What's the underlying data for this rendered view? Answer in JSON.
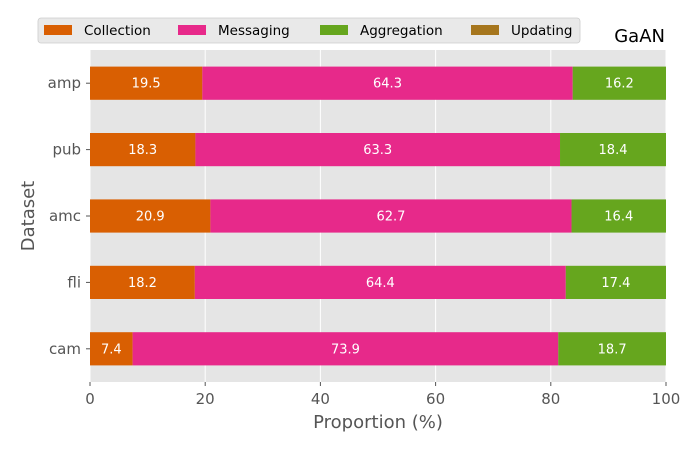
{
  "chart_data": {
    "type": "bar",
    "orientation": "horizontal",
    "stacked": true,
    "title": "GaAN",
    "xlabel": "Proportion (%)",
    "ylabel": "Dataset",
    "xlim": [
      0,
      100
    ],
    "xticks": [
      "0",
      "20",
      "40",
      "60",
      "80",
      "100"
    ],
    "categories": [
      "amp",
      "pub",
      "amc",
      "fli",
      "cam"
    ],
    "grid": true,
    "legend_position": "top",
    "series": [
      {
        "name": "Collection",
        "color": "#d95f02",
        "values": [
          19.5,
          18.3,
          20.9,
          18.2,
          7.4
        ],
        "labels": [
          "19.5",
          "18.3",
          "20.9",
          "18.2",
          "7.4"
        ]
      },
      {
        "name": "Messaging",
        "color": "#e7298a",
        "values": [
          64.3,
          63.3,
          62.7,
          64.4,
          73.9
        ],
        "labels": [
          "64.3",
          "63.3",
          "62.7",
          "64.4",
          "73.9"
        ]
      },
      {
        "name": "Aggregation",
        "color": "#66a61e",
        "values": [
          16.2,
          18.4,
          16.4,
          17.4,
          18.7
        ],
        "labels": [
          "16.2",
          "18.4",
          "16.4",
          "17.4",
          "18.7"
        ]
      },
      {
        "name": "Updating",
        "color": "#a6761d",
        "values": [
          0.0,
          0.0,
          0.0,
          0.0,
          0.0
        ],
        "labels": [
          "0.0",
          "0.0",
          "0.0",
          "0.0",
          "0.0"
        ]
      }
    ]
  }
}
